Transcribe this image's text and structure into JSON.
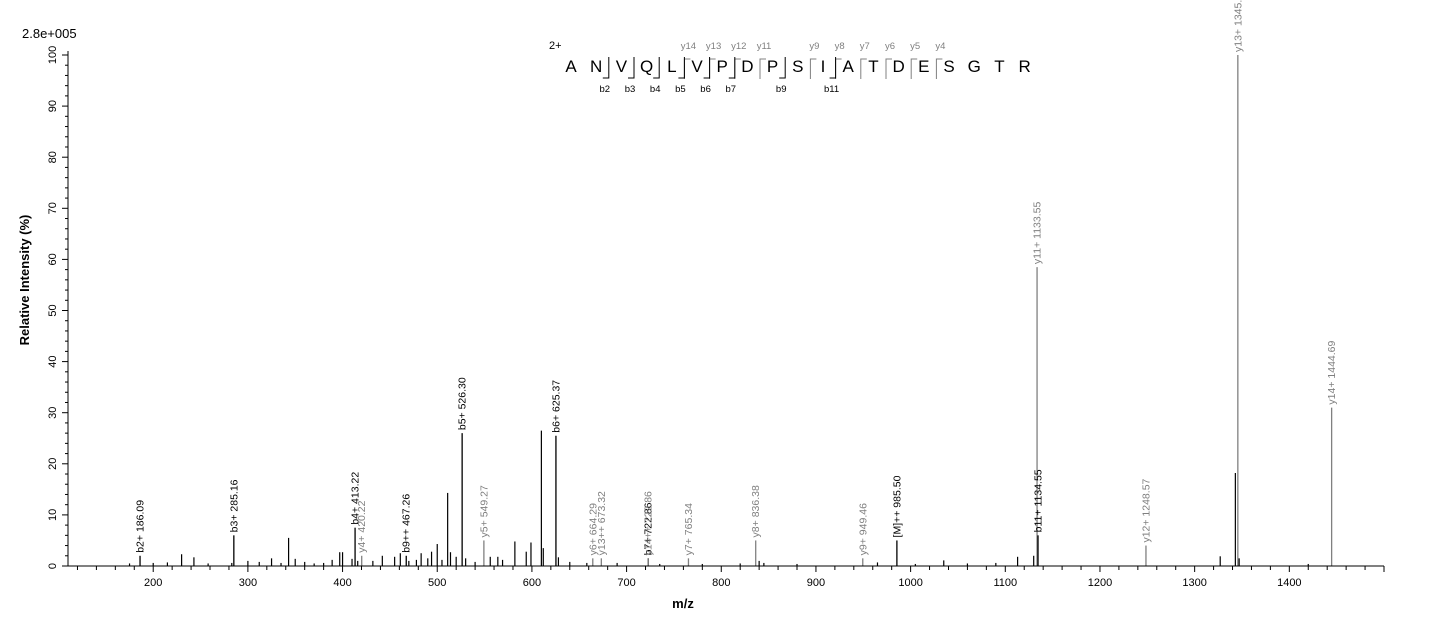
{
  "header": {
    "scale": "2.8e+005"
  },
  "chart_data": {
    "type": "bar",
    "xlabel": "m/z",
    "ylabel": "Relative   Intensity (%)",
    "xlim": [
      110,
      1500
    ],
    "ylim": [
      0,
      100
    ],
    "x_ticks": [
      200,
      300,
      400,
      500,
      600,
      700,
      800,
      900,
      1000,
      1100,
      1200,
      1300,
      1400
    ],
    "y_ticks": [
      0,
      10,
      20,
      30,
      40,
      50,
      60,
      70,
      80,
      90,
      100
    ],
    "colors": {
      "b_ion": "#000000",
      "y_ion": "#808080"
    },
    "peaks": [
      {
        "mz": 186.09,
        "intensity": 2.0,
        "label": "b2+ 186.09",
        "ion": "b"
      },
      {
        "mz": 285.16,
        "intensity": 6.0,
        "label": "b3+ 285.16",
        "ion": "b"
      },
      {
        "mz": 413.22,
        "intensity": 7.5,
        "label": "b4+ 413.22",
        "ion": "b"
      },
      {
        "mz": 420.22,
        "intensity": 2.0,
        "label": "y4+ 420.22",
        "ion": "y"
      },
      {
        "mz": 467.26,
        "intensity": 2.0,
        "label": "b9++ 467.26",
        "ion": "b"
      },
      {
        "mz": 526.3,
        "intensity": 26.0,
        "label": "b5+ 526.30",
        "ion": "b"
      },
      {
        "mz": 549.27,
        "intensity": 5.0,
        "label": "y5+ 549.27",
        "ion": "y"
      },
      {
        "mz": 625.37,
        "intensity": 25.5,
        "label": "b6+ 625.37",
        "ion": "b"
      },
      {
        "mz": 664.29,
        "intensity": 1.5,
        "label": "y6+ 664.29",
        "ion": "y"
      },
      {
        "mz": 673.32,
        "intensity": 1.5,
        "label": "y13++ 673.32",
        "ion": "y"
      },
      {
        "mz": 722.86,
        "intensity": 1.5,
        "label": "b7+ 722.86",
        "ion": "b"
      },
      {
        "mz": 722.86,
        "intensity": 1.5,
        "label": "y14++ 722.86",
        "ion": "y"
      },
      {
        "mz": 765.34,
        "intensity": 1.5,
        "label": "y7+ 765.34",
        "ion": "y"
      },
      {
        "mz": 836.38,
        "intensity": 5.0,
        "label": "y8+ 836.38",
        "ion": "y"
      },
      {
        "mz": 949.46,
        "intensity": 1.5,
        "label": "y9+ 949.46",
        "ion": "y"
      },
      {
        "mz": 985.5,
        "intensity": 5.0,
        "label": "[M]++ 985.50",
        "ion": "b"
      },
      {
        "mz": 1133.55,
        "intensity": 58.5,
        "label": "y11+ 1133.55",
        "ion": "y"
      },
      {
        "mz": 1134.55,
        "intensity": 6.0,
        "label": "b11+ 1134.55",
        "ion": "b"
      },
      {
        "mz": 1248.57,
        "intensity": 4.0,
        "label": "y12+ 1248.57",
        "ion": "y"
      },
      {
        "mz": 1345.62,
        "intensity": 100.0,
        "label": "y13+ 1345.62",
        "ion": "y"
      },
      {
        "mz": 1444.69,
        "intensity": 31.0,
        "label": "y14+ 1444.69",
        "ion": "y"
      }
    ],
    "minor_peaks": [
      [
        175,
        0.5
      ],
      [
        200,
        0.6
      ],
      [
        215,
        0.7
      ],
      [
        230,
        2.3
      ],
      [
        243,
        1.7
      ],
      [
        258,
        0.5
      ],
      [
        283,
        0.6
      ],
      [
        300,
        1.0
      ],
      [
        312,
        0.8
      ],
      [
        325,
        1.5
      ],
      [
        335,
        0.6
      ],
      [
        343,
        5.5
      ],
      [
        350,
        1.4
      ],
      [
        360,
        0.8
      ],
      [
        370,
        0.5
      ],
      [
        380,
        0.6
      ],
      [
        389,
        1.2
      ],
      [
        397,
        2.7
      ],
      [
        400,
        2.7
      ],
      [
        410,
        1.4
      ],
      [
        416,
        1.0
      ],
      [
        432,
        1.0
      ],
      [
        442,
        2.0
      ],
      [
        455,
        1.8
      ],
      [
        461,
        2.5
      ],
      [
        470,
        1.0
      ],
      [
        478,
        1.2
      ],
      [
        483,
        2.5
      ],
      [
        490,
        1.5
      ],
      [
        494,
        2.8
      ],
      [
        500,
        4.3
      ],
      [
        505,
        1.2
      ],
      [
        511,
        14.3
      ],
      [
        514,
        2.7
      ],
      [
        520,
        1.8
      ],
      [
        530,
        1.5
      ],
      [
        540,
        0.8
      ],
      [
        556,
        1.8
      ],
      [
        564,
        1.8
      ],
      [
        569,
        1.2
      ],
      [
        582,
        4.8
      ],
      [
        594,
        2.8
      ],
      [
        599,
        4.6
      ],
      [
        610,
        26.5
      ],
      [
        612,
        3.5
      ],
      [
        628,
        1.7
      ],
      [
        640,
        0.8
      ],
      [
        658,
        0.6
      ],
      [
        690,
        0.6
      ],
      [
        735,
        0.4
      ],
      [
        780,
        0.4
      ],
      [
        820,
        0.5
      ],
      [
        840,
        1.0
      ],
      [
        845,
        0.6
      ],
      [
        880,
        0.4
      ],
      [
        965,
        0.7
      ],
      [
        1005,
        0.4
      ],
      [
        1035,
        1.1
      ],
      [
        1060,
        0.5
      ],
      [
        1090,
        0.6
      ],
      [
        1113,
        1.8
      ],
      [
        1130,
        2.0
      ],
      [
        1327,
        1.9
      ],
      [
        1343,
        18.2
      ],
      [
        1347,
        1.5
      ],
      [
        1420,
        0.4
      ]
    ],
    "sequence": {
      "charge": "2+",
      "residues": [
        "A",
        "N",
        "V",
        "Q",
        "L",
        "V",
        "P",
        "D",
        "P",
        "S",
        "I",
        "A",
        "T",
        "D",
        "E",
        "S",
        "G",
        "T",
        "R"
      ],
      "y_ions": [
        {
          "label": "y14",
          "after": 5
        },
        {
          "label": "y13",
          "after": 6
        },
        {
          "label": "y12",
          "after": 7
        },
        {
          "label": "y11",
          "after": 8
        },
        {
          "label": "y9",
          "after": 10
        },
        {
          "label": "y8",
          "after": 11
        },
        {
          "label": "y7",
          "after": 12
        },
        {
          "label": "y6",
          "after": 13
        },
        {
          "label": "y5",
          "after": 14
        },
        {
          "label": "y4",
          "after": 15
        }
      ],
      "b_ions": [
        {
          "label": "b2",
          "after": 2
        },
        {
          "label": "b3",
          "after": 3
        },
        {
          "label": "b4",
          "after": 4
        },
        {
          "label": "b5",
          "after": 5
        },
        {
          "label": "b6",
          "after": 6
        },
        {
          "label": "b7",
          "after": 7
        },
        {
          "label": "b9",
          "after": 9
        },
        {
          "label": "b11",
          "after": 11
        }
      ]
    }
  }
}
